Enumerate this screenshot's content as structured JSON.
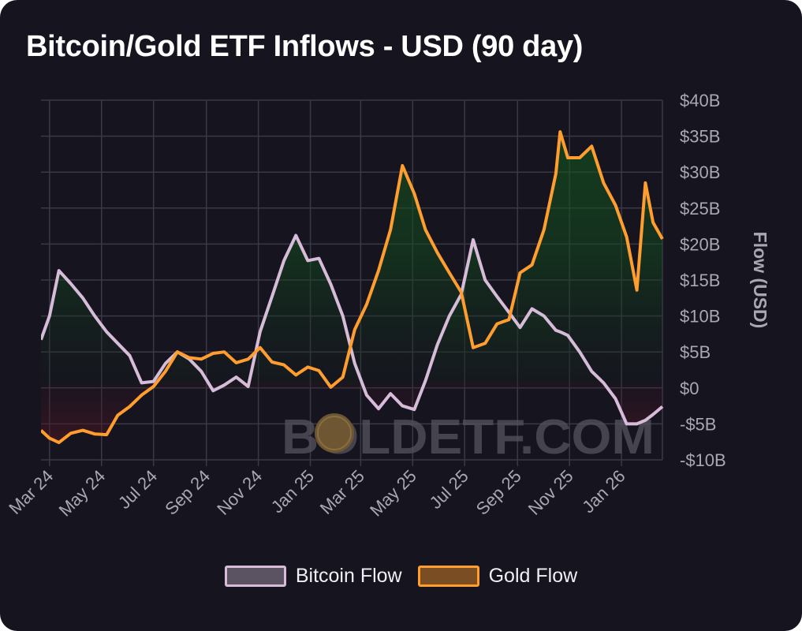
{
  "title": "Bitcoin/Gold ETF Inflows - USD (90 day)",
  "watermark": "BOLDETF.COM",
  "legend": {
    "bitcoin": "Bitcoin Flow",
    "gold": "Gold Flow"
  },
  "colors": {
    "background": "#15141f",
    "bitcoin_line": "#d6bcd8",
    "gold_line": "#ff9d2e",
    "positive_fill": "#145a1e",
    "negative_fill": "#5a1824",
    "grid": "#3a3946"
  },
  "chart_data": {
    "type": "line",
    "title": "Bitcoin/Gold ETF Inflows - USD (90 day)",
    "xlabel": "",
    "ylabel": "Flow (USD)",
    "ylim": [
      -10,
      40
    ],
    "y_unit": "billion USD",
    "y_ticks": [
      40,
      35,
      30,
      25,
      20,
      15,
      10,
      5,
      0,
      -5,
      -10
    ],
    "y_tick_labels": [
      "$40B",
      "$35B",
      "$30B",
      "$25B",
      "$20B",
      "$15B",
      "$10B",
      "$5B",
      "$0",
      "-$5B",
      "-$10B"
    ],
    "x_ticks": [
      "2024-03-01",
      "2024-05-01",
      "2024-07-01",
      "2024-09-01",
      "2024-11-01",
      "2025-01-01",
      "2025-03-01",
      "2025-05-01",
      "2025-07-01",
      "2025-09-01",
      "2025-11-01",
      "2026-01-01"
    ],
    "x_tick_labels": [
      "Mar 24",
      "May 24",
      "Jul 24",
      "Sep 24",
      "Nov 24",
      "Jan 25",
      "Mar 25",
      "May 25",
      "Jul 25",
      "Sep 25",
      "Nov 25",
      "Jan 26"
    ],
    "xlim": [
      "2024-02-20",
      "2026-02-18"
    ],
    "grid": true,
    "fill": "area to zero, green above zero, red below zero",
    "legend_position": "bottom",
    "x": [
      "2024-02-20",
      "2024-03-01",
      "2024-03-12",
      "2024-03-26",
      "2024-04-09",
      "2024-04-23",
      "2024-05-07",
      "2024-05-20",
      "2024-06-03",
      "2024-06-17",
      "2024-07-01",
      "2024-07-15",
      "2024-07-29",
      "2024-08-12",
      "2024-08-26",
      "2024-09-09",
      "2024-09-22",
      "2024-10-06",
      "2024-10-20",
      "2024-11-03",
      "2024-11-17",
      "2024-12-01",
      "2024-12-15",
      "2024-12-29",
      "2025-01-11",
      "2025-01-25",
      "2025-02-08",
      "2025-02-22",
      "2025-03-08",
      "2025-03-22",
      "2025-04-05",
      "2025-04-19",
      "2025-05-03",
      "2025-05-16",
      "2025-05-30",
      "2025-06-13",
      "2025-06-27",
      "2025-07-11",
      "2025-07-25",
      "2025-08-08",
      "2025-08-22",
      "2025-09-04",
      "2025-09-18",
      "2025-10-02",
      "2025-10-16",
      "2025-10-21",
      "2025-10-30",
      "2025-11-13",
      "2025-11-27",
      "2025-12-11",
      "2025-12-25",
      "2026-01-07",
      "2026-01-19",
      "2026-01-29",
      "2026-02-07",
      "2026-02-18"
    ],
    "series": [
      {
        "name": "Bitcoin Flow",
        "color": "#d6bcd8",
        "values": [
          6.7,
          10,
          16.3,
          14.5,
          12.5,
          10,
          7.8,
          6.2,
          4.5,
          0.7,
          0.9,
          3.4,
          5,
          4,
          2.3,
          -0.4,
          0.4,
          1.5,
          0.2,
          7.8,
          12.7,
          17.7,
          21.2,
          17.7,
          18,
          14.4,
          10,
          3.4,
          -1,
          -2.9,
          -0.8,
          -2.5,
          -3,
          1,
          6,
          10,
          13,
          20.6,
          15,
          12.7,
          10.5,
          8.4,
          11,
          10,
          8,
          7.8,
          7.3,
          5,
          2.3,
          0.7,
          -1.5,
          -5,
          -5,
          -4.5,
          -3.7,
          -2.6
        ]
      },
      {
        "name": "Gold Flow",
        "color": "#ff9d2e",
        "values": [
          -5.9,
          -7,
          -7.6,
          -6.3,
          -5.9,
          -6.4,
          -6.5,
          -3.8,
          -2.6,
          -1,
          0.2,
          2.3,
          5,
          4.2,
          4,
          4.8,
          5,
          3.5,
          4,
          5.6,
          3.6,
          3.2,
          1.8,
          2.9,
          2.4,
          0.1,
          1.5,
          8.1,
          11.6,
          16.3,
          22,
          30.9,
          27,
          22,
          18.8,
          16,
          13.3,
          5.6,
          6.2,
          8.9,
          9.5,
          16,
          17.1,
          22,
          29.8,
          35.6,
          32,
          32,
          33.6,
          28.5,
          25.4,
          21,
          13.6,
          28.5,
          23,
          20.7
        ]
      }
    ]
  }
}
